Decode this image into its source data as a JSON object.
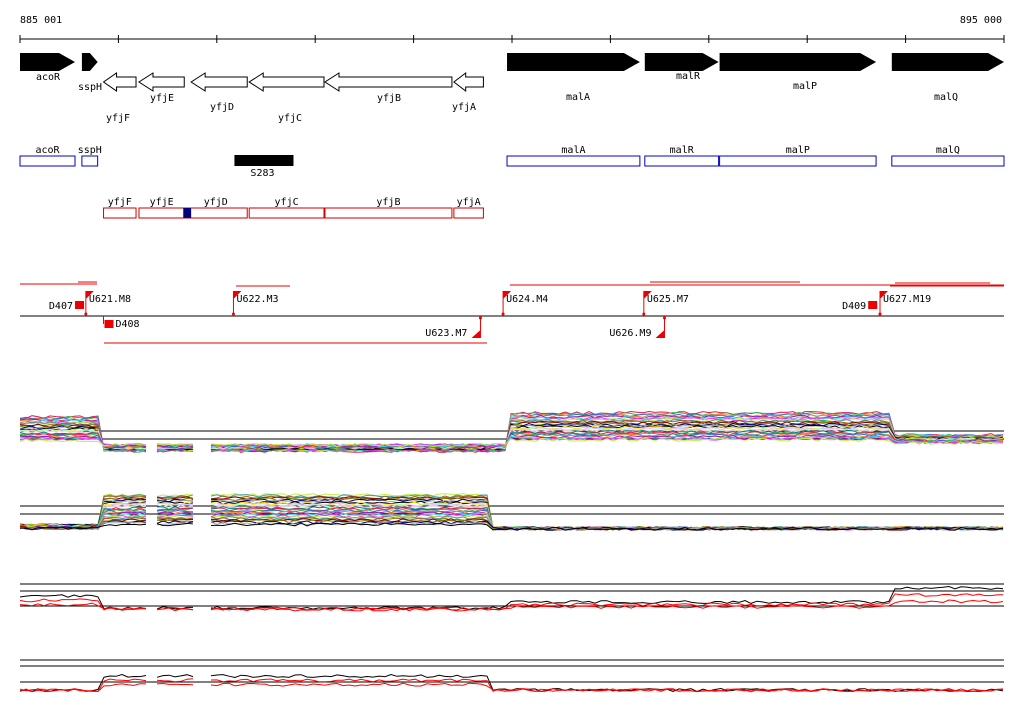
{
  "axis": {
    "start_label": "885 001",
    "end_label": "895 000",
    "start": 885001,
    "end": 895000
  },
  "colors": {
    "gene_fill": "#000000",
    "operon_upper": "#0000cc",
    "operon_lower": "#cc0000",
    "signal": "#ee0000",
    "marker": "#000080",
    "profile_second": "#000000",
    "profile_first": "#ff0000"
  },
  "genes_forward": [
    {
      "name": "acoR",
      "from": 885001,
      "to": 885560
    },
    {
      "name": "sspH",
      "from": 885630,
      "to": 885790
    },
    {
      "name": "malA",
      "from": 889950,
      "to": 891300
    },
    {
      "name": "malR",
      "from": 891350,
      "to": 892100
    },
    {
      "name": "malP",
      "from": 892110,
      "to": 893700
    },
    {
      "name": "malQ",
      "from": 893860,
      "to": 895000
    }
  ],
  "genes_reverse": [
    {
      "name": "yfjF",
      "from": 885850,
      "to": 886180
    },
    {
      "name": "yfjE",
      "from": 886210,
      "to": 886670
    },
    {
      "name": "yfjD",
      "from": 886740,
      "to": 887310
    },
    {
      "name": "yfjC",
      "from": 887330,
      "to": 888090
    },
    {
      "name": "yfjB",
      "from": 888100,
      "to": 889390
    },
    {
      "name": "yfjA",
      "from": 889410,
      "to": 889710
    }
  ],
  "upper_operons": [
    {
      "name": "acoR",
      "from": 885001,
      "to": 885560
    },
    {
      "name": "sspH",
      "from": 885630,
      "to": 885790
    },
    {
      "name": "malA",
      "from": 889950,
      "to": 891300
    },
    {
      "name": "malR",
      "from": 891350,
      "to": 892100
    },
    {
      "name": "malP",
      "from": 892110,
      "to": 893700
    },
    {
      "name": "malQ",
      "from": 893860,
      "to": 895000
    }
  ],
  "lower_operons": [
    {
      "name": "yfjF",
      "from": 885850,
      "to": 886180
    },
    {
      "name": "yfjE",
      "from": 886210,
      "to": 886670
    },
    {
      "name": "yfjD",
      "from": 886670,
      "to": 887310
    },
    {
      "name": "yfjC",
      "from": 887330,
      "to": 888090
    },
    {
      "name": "yfjB",
      "from": 888100,
      "to": 889390
    },
    {
      "name": "yfjA",
      "from": 889410,
      "to": 889710
    }
  ],
  "feature": {
    "name": "S283",
    "from": 887180,
    "to": 887780
  },
  "marker": {
    "from": 886660,
    "to": 886740
  },
  "signals": [
    {
      "name": "U621.M8",
      "pos": 885670,
      "strand": "+"
    },
    {
      "name": "U622.M3",
      "pos": 887170,
      "strand": "+"
    },
    {
      "name": "U624.M4",
      "pos": 889910,
      "strand": "+"
    },
    {
      "name": "U625.M7",
      "pos": 891340,
      "strand": "+"
    },
    {
      "name": "U627.M19",
      "pos": 893740,
      "strand": "+"
    },
    {
      "name": "U623.M7",
      "pos": 889680,
      "strand": "-"
    },
    {
      "name": "U626.M9",
      "pos": 891550,
      "strand": "-"
    }
  ],
  "terminators": [
    {
      "name": "D407",
      "pos": 885560,
      "strand": "+"
    },
    {
      "name": "D409",
      "pos": 893620,
      "strand": "+"
    },
    {
      "name": "D408",
      "pos": 885880,
      "strand": "-"
    }
  ]
}
